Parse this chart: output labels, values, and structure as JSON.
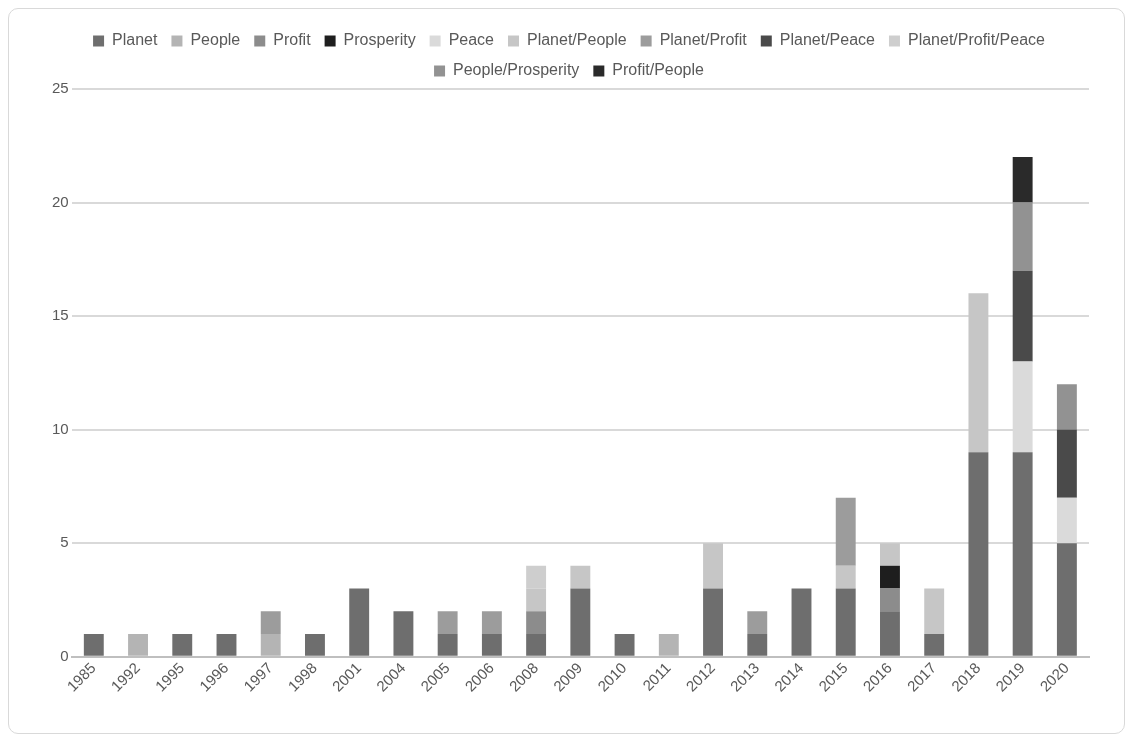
{
  "chart_data": {
    "type": "bar",
    "stacked": true,
    "legend": "top",
    "grid": "y",
    "ylim": [
      0,
      25
    ],
    "yticks": [
      0,
      5,
      10,
      15,
      20,
      25
    ],
    "categories": [
      "1985",
      "1992",
      "1995",
      "1996",
      "1997",
      "1998",
      "2001",
      "2004",
      "2005",
      "2006",
      "2008",
      "2009",
      "2010",
      "2011",
      "2012",
      "2013",
      "2014",
      "2015",
      "2016",
      "2017",
      "2018",
      "2019",
      "2020"
    ],
    "series": [
      {
        "name": "Planet",
        "color": "#6e6e6e",
        "values": [
          1,
          null,
          1,
          1,
          null,
          1,
          3,
          2,
          1,
          1,
          1,
          3,
          1,
          null,
          3,
          1,
          3,
          3,
          2,
          1,
          9,
          9,
          5
        ]
      },
      {
        "name": "People",
        "color": "#b4b4b4",
        "values": [
          null,
          1,
          null,
          null,
          1,
          null,
          null,
          null,
          null,
          null,
          null,
          null,
          null,
          1,
          null,
          null,
          null,
          null,
          null,
          null,
          null,
          null,
          null
        ]
      },
      {
        "name": "Profit",
        "color": "#8c8c8c",
        "values": [
          null,
          null,
          null,
          null,
          null,
          null,
          null,
          null,
          null,
          null,
          1,
          null,
          null,
          null,
          null,
          null,
          null,
          null,
          1,
          null,
          null,
          null,
          null
        ]
      },
      {
        "name": "Prosperity",
        "color": "#1e1e1e",
        "values": [
          null,
          null,
          null,
          null,
          null,
          null,
          null,
          null,
          null,
          null,
          null,
          null,
          null,
          null,
          null,
          null,
          null,
          null,
          1,
          null,
          null,
          null,
          null
        ]
      },
      {
        "name": "Peace",
        "color": "#dadada",
        "values": [
          null,
          null,
          null,
          null,
          null,
          null,
          null,
          null,
          null,
          null,
          null,
          null,
          null,
          null,
          null,
          null,
          null,
          null,
          null,
          null,
          null,
          4,
          2
        ]
      },
      {
        "name": "Planet/People",
        "color": "#c6c6c6",
        "values": [
          null,
          null,
          null,
          null,
          null,
          null,
          null,
          null,
          null,
          null,
          1,
          1,
          null,
          null,
          2,
          null,
          null,
          1,
          1,
          2,
          7,
          null,
          null
        ]
      },
      {
        "name": "Planet/Profit",
        "color": "#9c9c9c",
        "values": [
          null,
          null,
          null,
          null,
          1,
          null,
          null,
          null,
          1,
          1,
          null,
          null,
          null,
          null,
          null,
          1,
          null,
          3,
          null,
          null,
          null,
          null,
          null
        ]
      },
      {
        "name": "Planet/Peace",
        "color": "#4a4a4a",
        "values": [
          null,
          null,
          null,
          null,
          null,
          null,
          null,
          null,
          null,
          null,
          null,
          null,
          null,
          null,
          null,
          null,
          null,
          null,
          null,
          null,
          null,
          4,
          3
        ]
      },
      {
        "name": "Planet/Profit/Peace",
        "color": "#cecece",
        "values": [
          null,
          null,
          null,
          null,
          null,
          null,
          null,
          null,
          null,
          null,
          1,
          null,
          null,
          null,
          null,
          null,
          null,
          null,
          null,
          null,
          null,
          null,
          null
        ]
      },
      {
        "name": "People/Prosperity",
        "color": "#929292",
        "values": [
          null,
          null,
          null,
          null,
          null,
          null,
          null,
          null,
          null,
          null,
          null,
          null,
          null,
          null,
          null,
          null,
          null,
          null,
          null,
          null,
          null,
          3,
          2
        ]
      },
      {
        "name": "Profit/People",
        "color": "#2a2a2a",
        "values": [
          null,
          null,
          null,
          null,
          null,
          null,
          null,
          null,
          null,
          null,
          null,
          null,
          null,
          null,
          null,
          null,
          null,
          null,
          null,
          null,
          null,
          2,
          null
        ]
      }
    ]
  }
}
